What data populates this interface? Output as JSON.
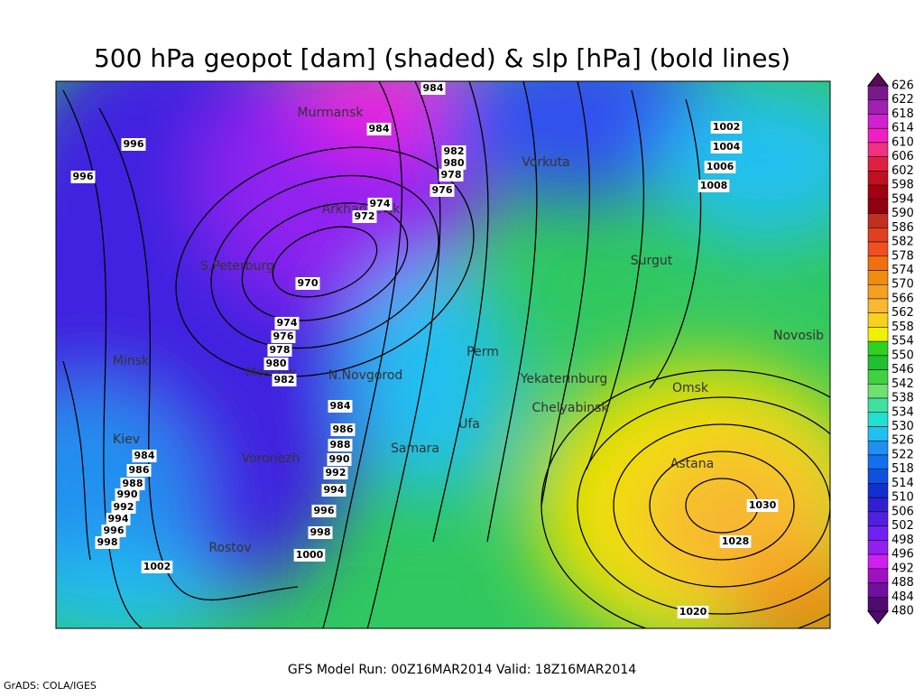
{
  "title": "500 hPa geopot [dam] (shaded) & slp [hPa] (bold lines)",
  "cities": [
    "Murmansk",
    "Vorkuta",
    "Arkhangelsk",
    "S.Peterburg",
    "Surgut",
    "Novosib",
    "Minsk",
    "Moscow",
    "N.Novgorod",
    "Perm",
    "Yekaterinburg",
    "Omsk",
    "Chelyabinsk",
    "Ufa",
    "Kiev",
    "Samara",
    "Voronezh",
    "Astana",
    "Rostov"
  ],
  "isobar_labels": [
    984,
    996,
    996,
    984,
    982,
    980,
    978,
    976,
    974,
    972,
    970,
    974,
    976,
    978,
    980,
    982,
    984,
    986,
    988,
    990,
    992,
    994,
    996,
    998,
    1000,
    984,
    986,
    988,
    990,
    992,
    994,
    996,
    998,
    1002,
    1002,
    1004,
    1006,
    1008,
    1030,
    1028,
    1020
  ],
  "colorbar": {
    "levels": [
      626,
      622,
      618,
      614,
      610,
      606,
      602,
      598,
      594,
      590,
      586,
      582,
      578,
      574,
      570,
      566,
      562,
      558,
      554,
      550,
      546,
      542,
      538,
      534,
      530,
      526,
      522,
      518,
      514,
      510,
      506,
      502,
      498,
      496,
      492,
      488,
      484,
      480
    ],
    "colors": [
      "#5a0a5a",
      "#7a1a8a",
      "#a020b0",
      "#d020d0",
      "#f020c0",
      "#f03080",
      "#e02040",
      "#c01020",
      "#a00010",
      "#900010",
      "#c03020",
      "#e04020",
      "#f05020",
      "#f07010",
      "#f08c10",
      "#f5a020",
      "#f8b830",
      "#f8d020",
      "#f0f000",
      "#30d020",
      "#20c030",
      "#40d040",
      "#70e070",
      "#40e0a0",
      "#20e0d0",
      "#20c0f0",
      "#2090f0",
      "#1070f0",
      "#1050e0",
      "#1030d0",
      "#3020d0",
      "#5020e0",
      "#7020f0",
      "#9020f0",
      "#d020f0",
      "#a010c0",
      "#7010a0",
      "#500a70"
    ]
  },
  "footer": "GFS Model Run: 00Z16MAR2014 Valid: 18Z16MAR2014",
  "credit": "GrADS: COLA/IGES"
}
